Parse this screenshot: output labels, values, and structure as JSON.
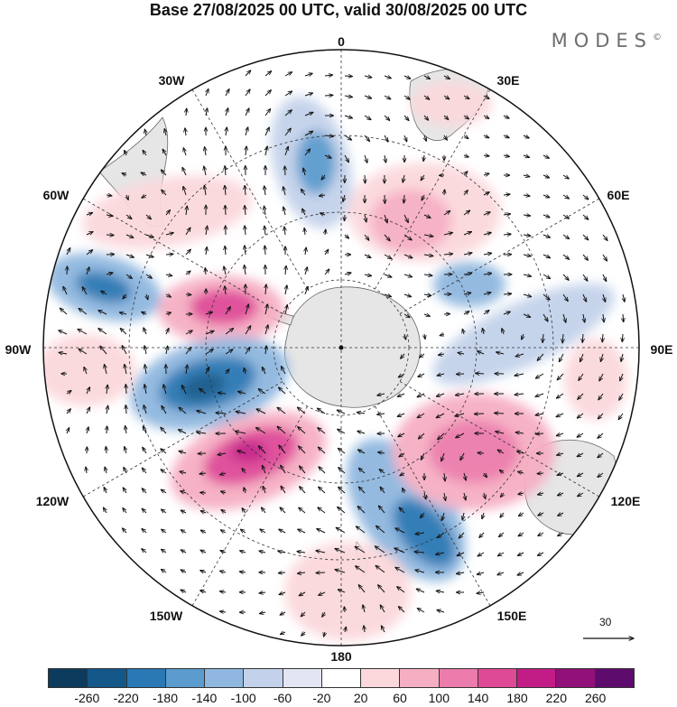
{
  "title": "Base 27/08/2025 00 UTC, valid 30/08/2025 00 UTC",
  "logo": "MODES",
  "logo_mark": "©",
  "longitude_labels": [
    "0",
    "30E",
    "60E",
    "90E",
    "120E",
    "150E",
    "180",
    "150W",
    "120W",
    "90W",
    "60W",
    "30W"
  ],
  "wind_reference": {
    "value": "30"
  },
  "colorbar": {
    "ticks": [
      "-260",
      "-220",
      "-180",
      "-140",
      "-100",
      "-60",
      "-20",
      "20",
      "60",
      "100",
      "140",
      "180",
      "220",
      "260"
    ],
    "colors": [
      "#0d3b5e",
      "#14588a",
      "#2a78b4",
      "#5b9bcd",
      "#8fb7df",
      "#c3d2ea",
      "#e3e5f3",
      "#ffffff",
      "#fbd8dc",
      "#f6aec3",
      "#ec7cab",
      "#df4a97",
      "#c21d86",
      "#92107a",
      "#5d0b6d"
    ]
  },
  "colors": {
    "land": "#e8e8e8",
    "coast": "#555555",
    "grid": "#333333",
    "arrow": "#111111"
  }
}
